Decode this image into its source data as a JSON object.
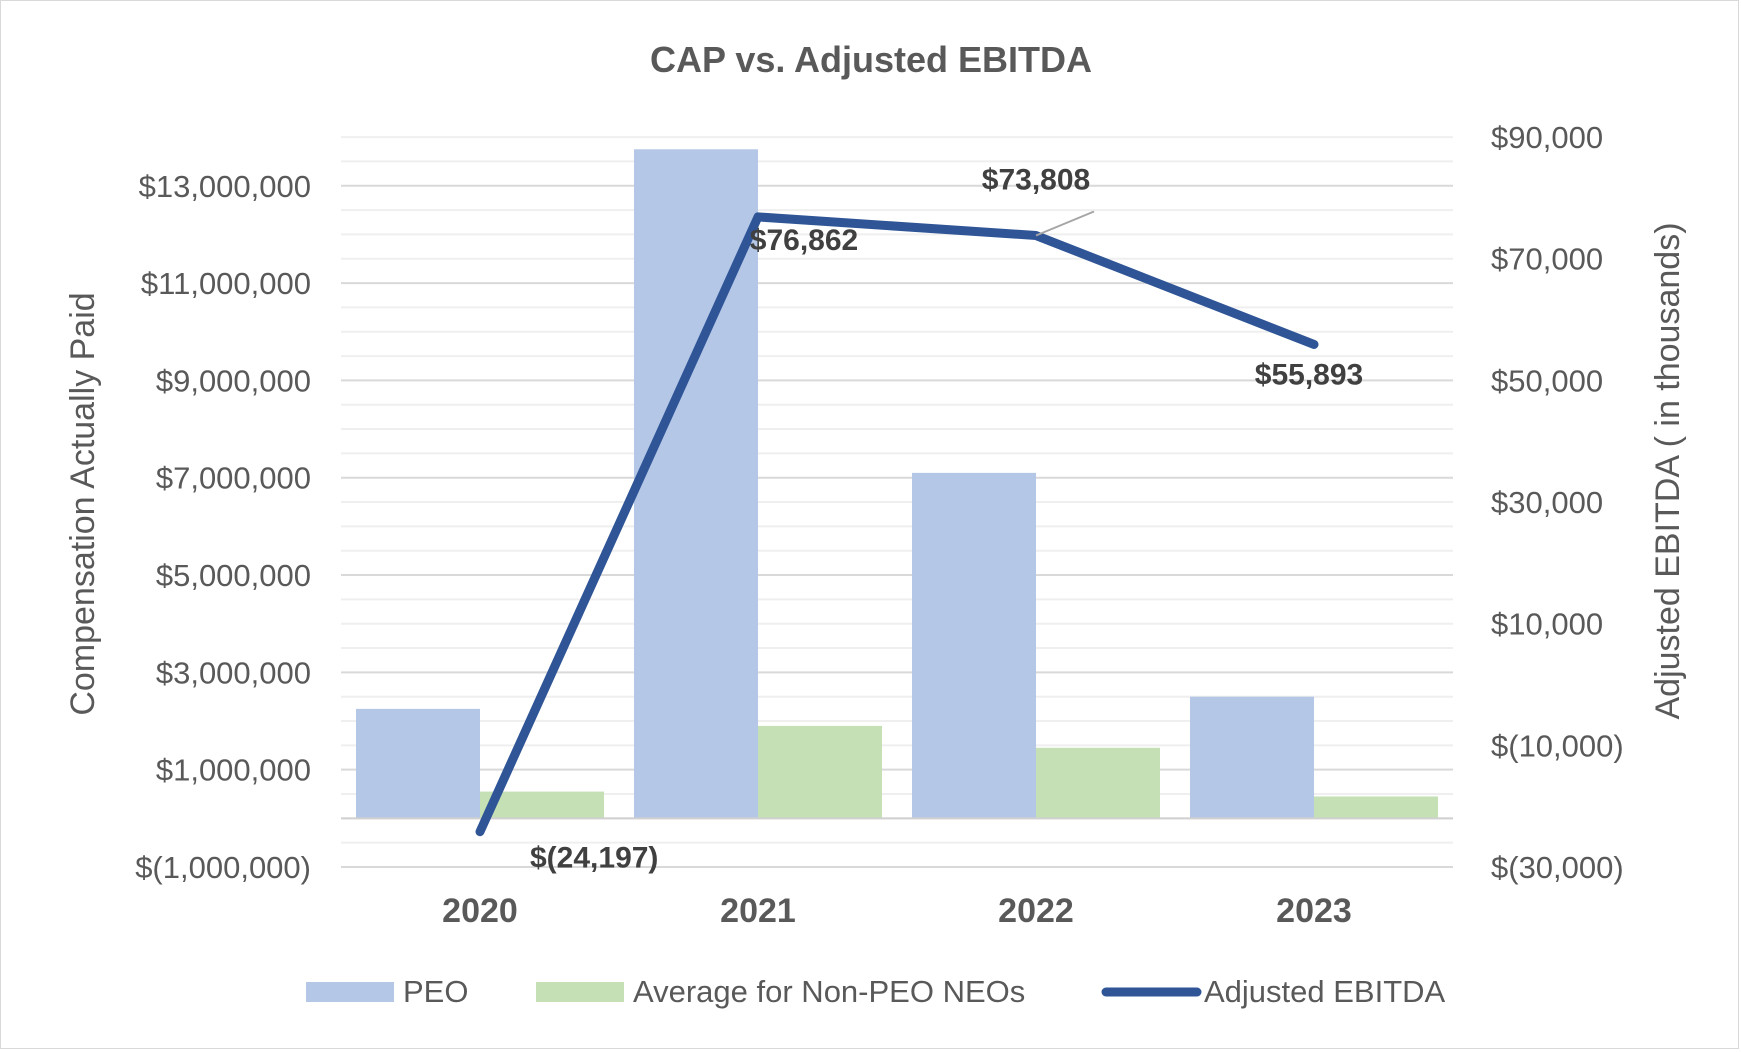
{
  "chart_data": {
    "type": "bar",
    "title": "CAP vs. Adjusted EBITDA",
    "categories": [
      "2020",
      "2021",
      "2022",
      "2023"
    ],
    "series": [
      {
        "name": "PEO",
        "kind": "bar",
        "axis": "left",
        "color": "#b4c7e7",
        "values": [
          2250000,
          13750000,
          7100000,
          2500000
        ]
      },
      {
        "name": "Average for Non-PEO NEOs",
        "kind": "bar",
        "axis": "left",
        "color": "#c5e0b4",
        "values": [
          550000,
          1900000,
          1450000,
          450000
        ]
      },
      {
        "name": "Adjusted EBITDA",
        "kind": "line",
        "axis": "right",
        "color": "#2f5597",
        "values": [
          -24197,
          76862,
          73808,
          55893
        ],
        "labels": [
          "$(24,197)",
          "$76,862",
          "$73,808",
          "$55,893"
        ]
      }
    ],
    "ylabel": "Compensation Actually Paid",
    "y2label": "Adjusted EBITDA ( in thousands)",
    "ylim": [
      -1000000,
      14000000
    ],
    "y2lim": [
      -30000,
      90000
    ],
    "yticks": [
      -1000000,
      1000000,
      3000000,
      5000000,
      7000000,
      9000000,
      11000000,
      13000000
    ],
    "ytick_labels": [
      "$(1,000,000)",
      "$1,000,000",
      "$3,000,000",
      "$5,000,000",
      "$7,000,000",
      "$9,000,000",
      "$11,000,000",
      "$13,000,000"
    ],
    "y2ticks": [
      -30000,
      -10000,
      10000,
      30000,
      50000,
      70000,
      90000
    ],
    "y2tick_labels": [
      "$(30,000)",
      "$(10,000)",
      "$10,000",
      "$30,000",
      "$50,000",
      "$70,000",
      "$90,000"
    ],
    "legend_position": "bottom",
    "grid": true
  }
}
